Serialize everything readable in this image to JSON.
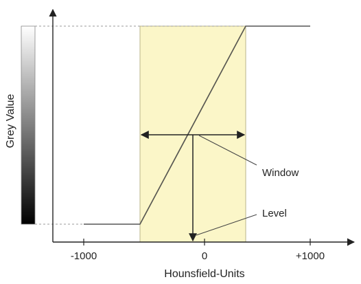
{
  "axes": {
    "x_label": "Hounsfield-Units",
    "y_label": "Grey Value",
    "x_ticks": [
      "-1000",
      "0",
      "+1000"
    ]
  },
  "annotations": {
    "window": "Window",
    "level": "Level"
  },
  "colors": {
    "window_fill": "#fbf6c8",
    "window_stroke": "#b8b48a",
    "curve": "#555555",
    "axis": "#222222",
    "diagonal": "#e6df9c",
    "dashed": "#9a9a9a"
  }
}
